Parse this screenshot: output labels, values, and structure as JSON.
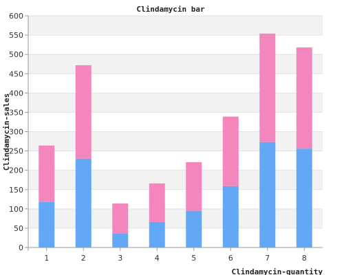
{
  "chart_data": {
    "type": "bar",
    "stacked": true,
    "title": "Clindamycin bar",
    "xlabel": "Clindamycin-quantity",
    "ylabel": "Clindamycin-sales",
    "categories": [
      "1",
      "2",
      "3",
      "4",
      "5",
      "6",
      "7",
      "8"
    ],
    "series": [
      {
        "values": [
          118,
          230,
          37,
          66,
          95,
          159,
          273,
          256
        ],
        "color": "#63a8f5"
      },
      {
        "values": [
          146,
          242,
          77,
          100,
          126,
          180,
          281,
          262
        ],
        "color": "#f286bd"
      }
    ],
    "ylim": [
      0,
      600
    ],
    "yticks": [
      0,
      50,
      100,
      150,
      200,
      250,
      300,
      350,
      400,
      450,
      500,
      550,
      600
    ],
    "grid": true,
    "legend": "none"
  }
}
